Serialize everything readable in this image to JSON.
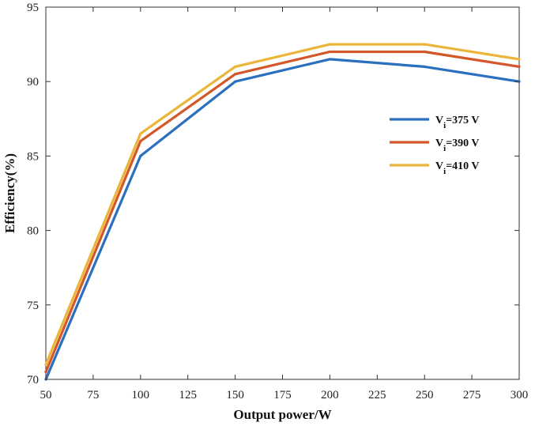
{
  "chart_data": {
    "type": "line",
    "title": "",
    "xlabel": "Output power/W",
    "ylabel": "Efficiency(%)",
    "xlim": [
      50,
      300
    ],
    "ylim": [
      70,
      95
    ],
    "xticks": [
      50,
      75,
      100,
      125,
      150,
      175,
      200,
      225,
      250,
      275,
      300
    ],
    "yticks": [
      70,
      75,
      80,
      85,
      90,
      95
    ],
    "grid": false,
    "legend_position": "right",
    "x": [
      50,
      100,
      150,
      200,
      250,
      300
    ],
    "series": [
      {
        "name": "Vi=375 V",
        "label_main": "V",
        "label_sub": "i",
        "label_rest": "=375 V",
        "color": "#2b6fbf",
        "values": [
          70.0,
          85.0,
          90.0,
          91.5,
          91.0,
          90.0
        ]
      },
      {
        "name": "Vi=390 V",
        "label_main": "V",
        "label_sub": "i",
        "label_rest": "=390 V",
        "color": "#d4572a",
        "values": [
          70.5,
          86.0,
          90.5,
          92.0,
          92.0,
          91.0
        ]
      },
      {
        "name": "Vi=410 V",
        "label_main": "V",
        "label_sub": "i",
        "label_rest": "=410 V",
        "color": "#ebb53a",
        "values": [
          71.0,
          86.5,
          91.0,
          92.5,
          92.5,
          91.5
        ]
      }
    ]
  }
}
